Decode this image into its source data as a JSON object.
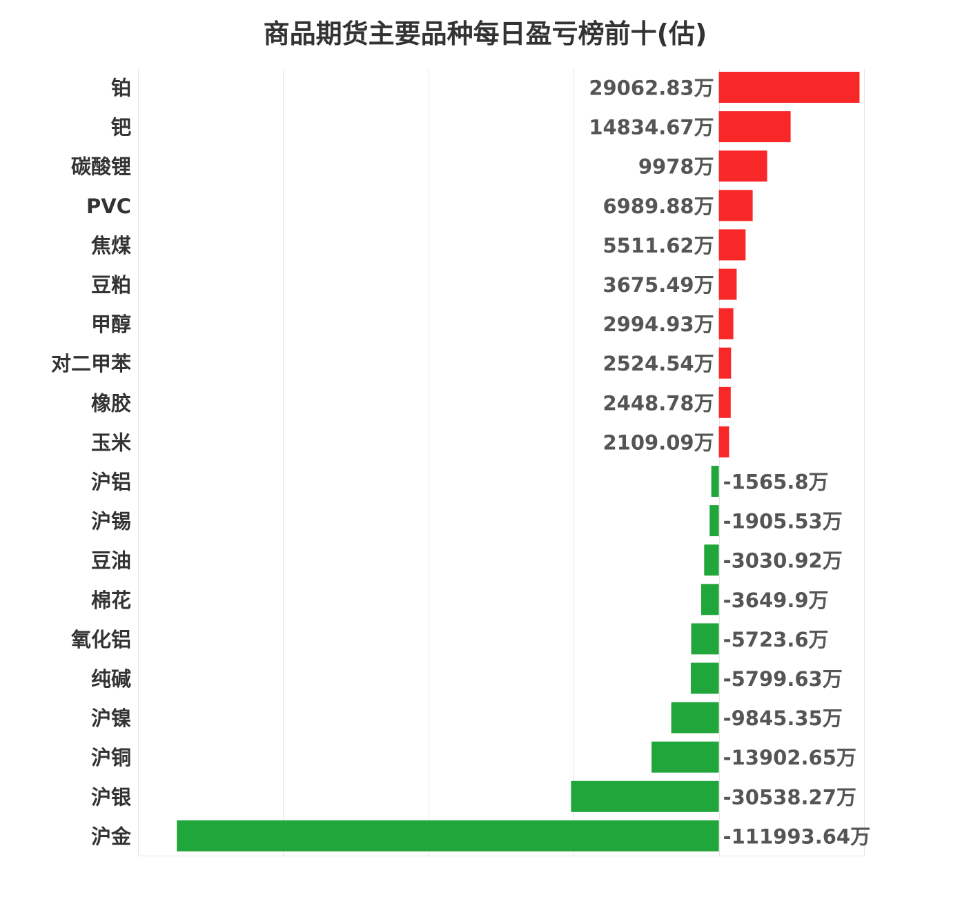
{
  "chart_data": {
    "type": "bar",
    "orientation": "horizontal",
    "title": "商品期货主要品种每日盈亏榜前十(估)",
    "unit": "万",
    "categories": [
      "铂",
      "钯",
      "碳酸锂",
      "PVC",
      "焦煤",
      "豆粕",
      "甲醇",
      "对二甲苯",
      "橡胶",
      "玉米",
      "沪铝",
      "沪锡",
      "豆油",
      "棉花",
      "氧化铝",
      "纯碱",
      "沪镍",
      "沪铜",
      "沪银",
      "沪金"
    ],
    "values": [
      29062.83,
      14834.67,
      9978,
      6989.88,
      5511.62,
      3675.49,
      2994.93,
      2524.54,
      2448.78,
      2109.09,
      -1565.8,
      -1905.53,
      -3030.92,
      -3649.9,
      -5723.6,
      -5799.63,
      -9845.35,
      -13902.65,
      -30538.27,
      -111993.64
    ],
    "value_labels": [
      "29062.83万",
      "14834.67万",
      "9978万",
      "6989.88万",
      "5511.62万",
      "3675.49万",
      "2994.93万",
      "2524.54万",
      "2448.78万",
      "2109.09万",
      "-1565.8万",
      "-1905.53万",
      "-3030.92万",
      "-3649.9万",
      "-5723.6万",
      "-5799.63万",
      "-9845.35万",
      "-13902.65万",
      "-30538.27万",
      "-111993.64万"
    ],
    "xlim": [
      -120000,
      30000
    ],
    "grid": true,
    "positive_color": "#f92828",
    "negative_color": "#21a63b"
  }
}
